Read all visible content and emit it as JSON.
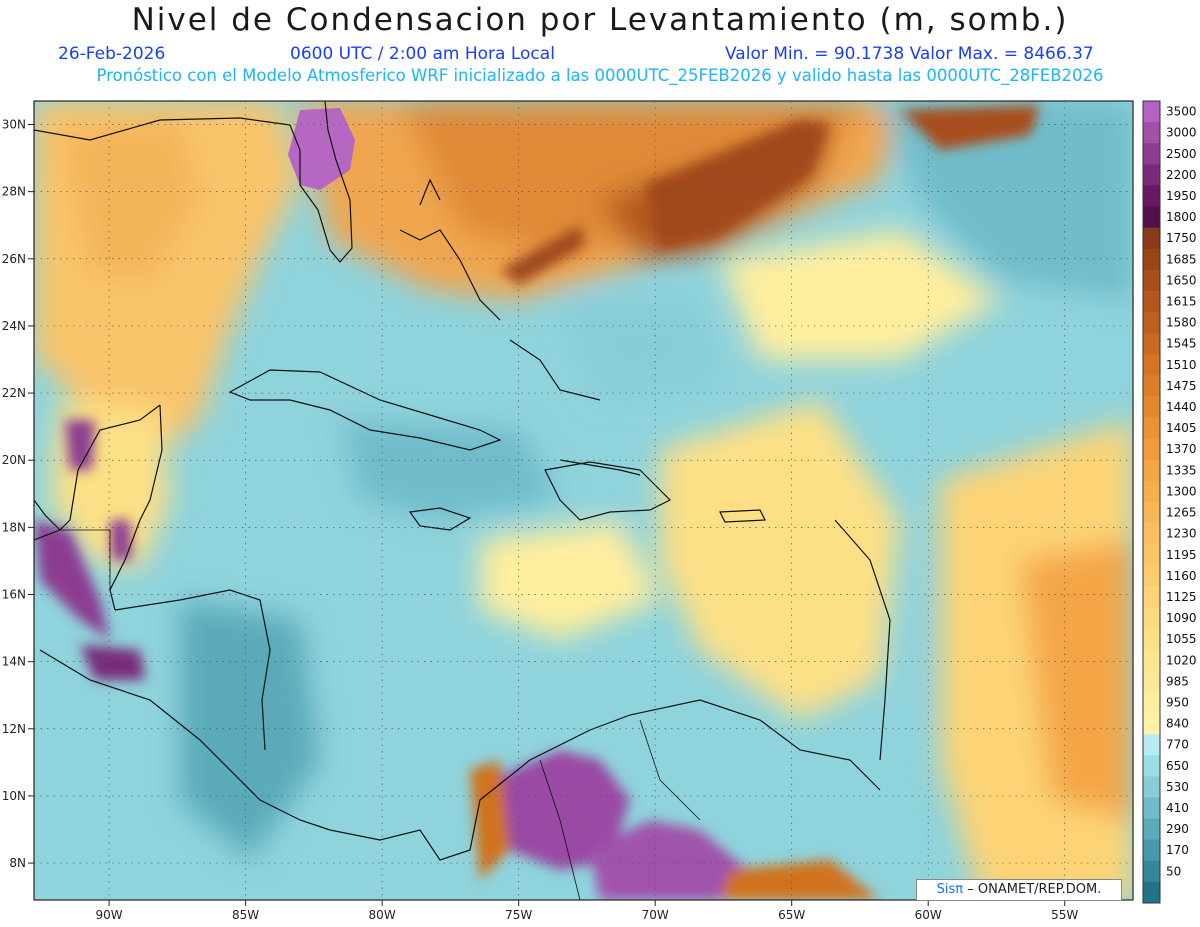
{
  "header": {
    "title": "Nivel de Condensacion por Levantamiento (m, somb.)",
    "date": "26-Feb-2026",
    "time": "0600 UTC / 2:00 am Hora Local",
    "min_max": "Valor Min. = 90.1738   Valor Max. = 8466.37",
    "subtitle": "Pronóstico con el Modelo Atmosferico WRF inicializado a las 0000UTC_25FEB2026 y valido hasta las  0000UTC_28FEB2026"
  },
  "map": {
    "lon_range": [
      -92.75,
      -52.5
    ],
    "lat_range": [
      6.9,
      30.7
    ],
    "lon_ticks": [
      {
        "v": -90,
        "label": "90W"
      },
      {
        "v": -85,
        "label": "85W"
      },
      {
        "v": -80,
        "label": "80W"
      },
      {
        "v": -75,
        "label": "75W"
      },
      {
        "v": -70,
        "label": "70W"
      },
      {
        "v": -65,
        "label": "65W"
      },
      {
        "v": -60,
        "label": "60W"
      },
      {
        "v": -55,
        "label": "55W"
      }
    ],
    "lat_ticks": [
      {
        "v": 8,
        "label": "8N"
      },
      {
        "v": 10,
        "label": "10N"
      },
      {
        "v": 12,
        "label": "12N"
      },
      {
        "v": 14,
        "label": "14N"
      },
      {
        "v": 16,
        "label": "16N"
      },
      {
        "v": 18,
        "label": "18N"
      },
      {
        "v": 20,
        "label": "20N"
      },
      {
        "v": 22,
        "label": "22N"
      },
      {
        "v": 24,
        "label": "24N"
      },
      {
        "v": 26,
        "label": "26N"
      },
      {
        "v": 28,
        "label": "28N"
      },
      {
        "v": 30,
        "label": "30N"
      }
    ],
    "colors": {
      "low": "#2d8aa0",
      "ocean": "#8fd3dc",
      "land_mid": "#ffe27a",
      "high": "#d0721e",
      "very_high": "#8a2e6a",
      "extreme": "#b567c2"
    }
  },
  "colorbar": {
    "levels": [
      {
        "label": "3500",
        "color": "#b264c0"
      },
      {
        "label": "3000",
        "color": "#a052ab"
      },
      {
        "label": "2500",
        "color": "#8c3c92"
      },
      {
        "label": "2200",
        "color": "#7a2a7a"
      },
      {
        "label": "1950",
        "color": "#661a62"
      },
      {
        "label": "1800",
        "color": "#52104c"
      },
      {
        "label": "1750",
        "color": "#8a3a1a"
      },
      {
        "label": "1685",
        "color": "#9a4418"
      },
      {
        "label": "1650",
        "color": "#a84e1a"
      },
      {
        "label": "1615",
        "color": "#b4571c"
      },
      {
        "label": "1580",
        "color": "#c0601e"
      },
      {
        "label": "1545",
        "color": "#ca6a20"
      },
      {
        "label": "1510",
        "color": "#d47424"
      },
      {
        "label": "1475",
        "color": "#dc7e28"
      },
      {
        "label": "1440",
        "color": "#e4882e"
      },
      {
        "label": "1405",
        "color": "#ea9236"
      },
      {
        "label": "1370",
        "color": "#f09c3e"
      },
      {
        "label": "1335",
        "color": "#f4a646"
      },
      {
        "label": "1300",
        "color": "#f6ae4e"
      },
      {
        "label": "1265",
        "color": "#f8b656"
      },
      {
        "label": "1230",
        "color": "#f9be5e"
      },
      {
        "label": "1195",
        "color": "#fac666"
      },
      {
        "label": "1160",
        "color": "#fbcd6e"
      },
      {
        "label": "1125",
        "color": "#fcd476"
      },
      {
        "label": "1090",
        "color": "#fdda7e"
      },
      {
        "label": "1055",
        "color": "#fde086"
      },
      {
        "label": "1020",
        "color": "#fee68e"
      },
      {
        "label": "985",
        "color": "#feea96"
      },
      {
        "label": "950",
        "color": "#ffee9e"
      },
      {
        "label": "840",
        "color": "#fff2a8"
      },
      {
        "label": "770",
        "color": "#b8ecf2"
      },
      {
        "label": "650",
        "color": "#9ddde6"
      },
      {
        "label": "530",
        "color": "#86cdd8"
      },
      {
        "label": "410",
        "color": "#70bcca"
      },
      {
        "label": "290",
        "color": "#5aaaba"
      },
      {
        "label": "170",
        "color": "#4698aa"
      },
      {
        "label": "50",
        "color": "#34869a"
      },
      {
        "label": "",
        "color": "#24728a"
      }
    ]
  },
  "credit": {
    "sis": "Sisπ",
    "text": "– ONAMET/REP.DOM."
  }
}
